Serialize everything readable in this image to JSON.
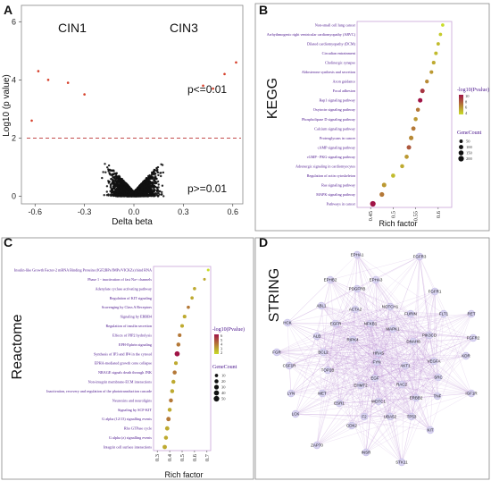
{
  "panels": {
    "a": {
      "letter": "A",
      "group_left": "CIN1",
      "group_right": "CIN3",
      "p_high": "p<=0.01",
      "p_low": "p>=0.01",
      "xlabel": "Delta beta",
      "ylabel": "Log10 (p value)"
    },
    "b": {
      "letter": "B",
      "side_title": "KEGG",
      "xlabel": "Rich factor",
      "legend_color_title": "-log10(Pvalue)",
      "legend_size_title": "GeneCount",
      "legend_color_ticks": [
        "10",
        "8",
        "6",
        "4"
      ],
      "legend_size_ticks": [
        "50",
        "100",
        "150",
        "200"
      ]
    },
    "c": {
      "letter": "C",
      "side_title": "Reactome",
      "xlabel": "Rich factor",
      "legend_color_title": "-log10(Pvalue)",
      "legend_size_title": "GeneCount",
      "legend_color_ticks": [
        "6",
        "5",
        "4",
        "3",
        "2"
      ],
      "legend_size_ticks": [
        "10",
        "20",
        "30",
        "40",
        "50"
      ]
    },
    "d": {
      "letter": "D",
      "side_title": "STRING"
    }
  },
  "chart_data": [
    {
      "panel": "A",
      "type": "scatter",
      "title": "",
      "xlabel": "Delta beta",
      "ylabel": "Log10 (p value)",
      "xlim": [
        -0.65,
        0.65
      ],
      "ylim": [
        -0.2,
        6.5
      ],
      "x_ticks": [
        -0.6,
        -0.3,
        0.0,
        0.3,
        0.6
      ],
      "y_ticks": [
        0,
        2,
        4,
        6
      ],
      "threshold_y": 2,
      "series": [
        {
          "name": "p<=0.01",
          "color": "#d6402b"
        },
        {
          "name": "p>=0.01",
          "color": "#111111"
        }
      ],
      "highlight_points": [
        {
          "x": -0.58,
          "y": 4.3
        },
        {
          "x": -0.52,
          "y": 4.0
        },
        {
          "x": -0.4,
          "y": 3.9
        },
        {
          "x": -0.3,
          "y": 3.5
        },
        {
          "x": 0.42,
          "y": 3.8
        },
        {
          "x": 0.48,
          "y": 3.7
        },
        {
          "x": 0.55,
          "y": 4.2
        },
        {
          "x": 0.62,
          "y": 4.6
        },
        {
          "x": -0.62,
          "y": 2.6
        }
      ]
    },
    {
      "panel": "B",
      "type": "scatter",
      "title": "",
      "xlabel": "Rich factor",
      "ylabel": "",
      "xlim": [
        0.42,
        0.63
      ],
      "x_ticks": [
        0.45,
        0.5,
        0.55,
        0.6
      ],
      "categories": [
        "Non-small cell lung cancer",
        "Arrhythmogenic right ventricular cardiomyopathy (ARVC)",
        "Dilated cardiomyopathy (DCM)",
        "Circadian entrainment",
        "Cholinergic synapse",
        "Aldosterone synthesis and secretion",
        "Axon guidance",
        "Focal adhesion",
        "Rap1 signaling pathway",
        "Oxytocin signaling pathway",
        "Phospholipase D signaling pathway",
        "Calcium signaling pathway",
        "Proteoglycans in cancer",
        "cAMP signaling pathway",
        "cGMP - PKG signaling pathway",
        "Adrenergic signaling in cardiomyocytes",
        "Regulation of actin cytoskeleton",
        "Ras signaling pathway",
        "MAPK signaling pathway",
        "Pathways in cancer"
      ],
      "rich_factor": [
        0.61,
        0.605,
        0.6,
        0.595,
        0.59,
        0.585,
        0.575,
        0.565,
        0.56,
        0.555,
        0.55,
        0.545,
        0.54,
        0.535,
        0.53,
        0.52,
        0.5,
        0.48,
        0.475,
        0.455
      ],
      "neg_log10_p": [
        4,
        4.5,
        5,
        5,
        5.5,
        6,
        6.5,
        9,
        10,
        7,
        6,
        7,
        6.5,
        8,
        6,
        5.5,
        5,
        6,
        7,
        10
      ],
      "gene_count": [
        40,
        45,
        50,
        55,
        60,
        60,
        70,
        110,
        110,
        80,
        80,
        100,
        110,
        110,
        90,
        80,
        90,
        110,
        130,
        200
      ]
    },
    {
      "panel": "C",
      "type": "scatter",
      "title": "",
      "xlabel": "Rich factor",
      "ylabel": "",
      "xlim": [
        0.27,
        0.73
      ],
      "x_ticks": [
        0.3,
        0.4,
        0.5,
        0.6,
        0.7
      ],
      "categories": [
        "Insulin-like Growth Factor-2 mRNA Binding Proteins (IGF2BPs/IMPs/VICKZs) bind RNA",
        "Phase 1 - inactivation of fast Na+ channels",
        "Adenylate cyclase activating pathway",
        "Regulation of KIT signaling",
        "Scavenging by Class A Receptors",
        "Signaling by ERBB4",
        "Regulation of insulin secretion",
        "Effects of PIP2 hydrolysis",
        "EPH-Ephrin signaling",
        "Synthesis of IP3 and IP4 in the cytosol",
        "EPHA-mediated growth cone collapse",
        "NRAGE signals death through JNK",
        "Non-integrin membrane-ECM interactions",
        "Inactivation, recovery and regulation of the phototransduction cascade",
        "Neurexins and neuroligins",
        "Signaling by SCF-KIT",
        "G alpha (12/13) signalling events",
        "Rho GTPase cycle",
        "G alpha (z) signalling events",
        "Integrin cell surface interactions"
      ],
      "rich_factor": [
        0.71,
        0.68,
        0.6,
        0.58,
        0.55,
        0.52,
        0.5,
        0.48,
        0.47,
        0.46,
        0.45,
        0.44,
        0.43,
        0.42,
        0.41,
        0.4,
        0.39,
        0.38,
        0.37,
        0.36
      ],
      "neg_log10_p": [
        2,
        3,
        3,
        3,
        4,
        3,
        3,
        4,
        4,
        6,
        3,
        4,
        3,
        3,
        4,
        3,
        4,
        3,
        3,
        3
      ],
      "gene_count": [
        5,
        5,
        10,
        10,
        10,
        15,
        15,
        15,
        20,
        40,
        15,
        20,
        20,
        20,
        20,
        20,
        25,
        25,
        20,
        25
      ]
    }
  ],
  "network": {
    "nodes": [
      "EPHA1",
      "FGFR3",
      "EPHB2",
      "EPHA3",
      "PDGFRB",
      "FGFR1",
      "ABL1",
      "ACTA2",
      "NOTCH1",
      "FURIN",
      "FLT1",
      "RET",
      "HCK",
      "EGFR",
      "NFKB1",
      "MAPK1",
      "PIK3CD",
      "FGFR2",
      "ALB",
      "RIPK4",
      "DNAH8",
      "KDR",
      "BCL2",
      "HRAS",
      "VEGFA",
      "FGR",
      "CSF1R",
      "TOP2B",
      "FYN",
      "AKT1",
      "SRC",
      "LYN",
      "MET",
      "EGF",
      "EHMT2",
      "RAC2",
      "TNF",
      "IGF1R",
      "ESR1",
      "WDTC1",
      "ERBB2",
      "LCK",
      "F2",
      "UBA52",
      "TP53",
      "CDK2",
      "KIT",
      "ZAP70",
      "INSR",
      "STK11"
    ]
  }
}
